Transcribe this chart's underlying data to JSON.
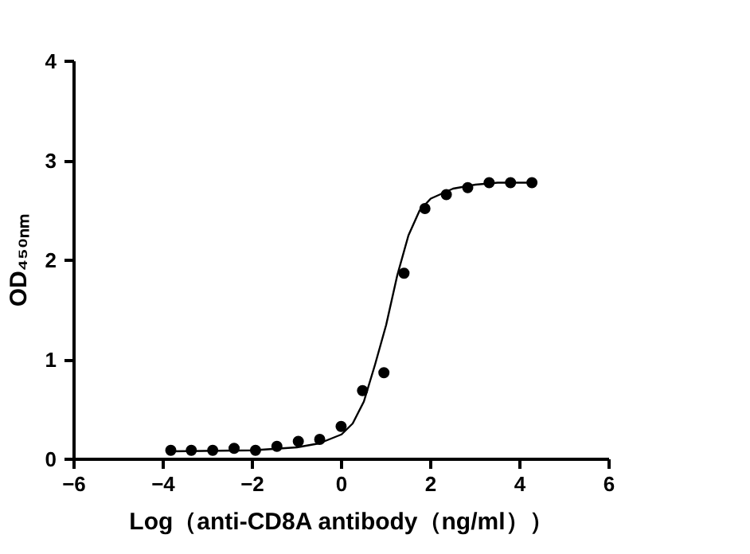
{
  "chart_data": {
    "type": "scatter",
    "xlabel": "Log（anti-CD8A antibody（ng/ml））",
    "ylabel": "OD₄₅₀ₙₘ",
    "xlim": [
      -6,
      6
    ],
    "ylim": [
      0,
      4
    ],
    "xticks": [
      -6,
      -4,
      -2,
      0,
      2,
      4,
      6
    ],
    "yticks": [
      0,
      1,
      2,
      3,
      4
    ],
    "grid": false,
    "marker": "circle",
    "series": [
      {
        "color": "#000000",
        "x": [
          -3.83,
          -3.37,
          -2.89,
          -2.41,
          -1.93,
          -1.45,
          -0.97,
          -0.49,
          -0.01,
          0.47,
          0.95,
          1.4,
          1.87,
          2.35,
          2.83,
          3.31,
          3.79,
          4.27
        ],
        "values": [
          0.09,
          0.09,
          0.09,
          0.11,
          0.09,
          0.13,
          0.18,
          0.2,
          0.33,
          0.69,
          0.87,
          1.87,
          2.52,
          2.66,
          2.73,
          2.78,
          2.78,
          2.78
        ]
      },
      {
        "type": "line",
        "color": "#000000",
        "line_style": "solid",
        "marker": "none",
        "x": [
          -3.83,
          -2,
          -1,
          -0.5,
          0,
          0.25,
          0.5,
          0.75,
          1,
          1.25,
          1.5,
          1.75,
          2,
          2.5,
          3,
          3.5,
          4.27
        ],
        "values": [
          0.08,
          0.09,
          0.12,
          0.16,
          0.25,
          0.36,
          0.58,
          0.95,
          1.35,
          1.85,
          2.25,
          2.5,
          2.62,
          2.72,
          2.76,
          2.78,
          2.78
        ]
      }
    ]
  }
}
